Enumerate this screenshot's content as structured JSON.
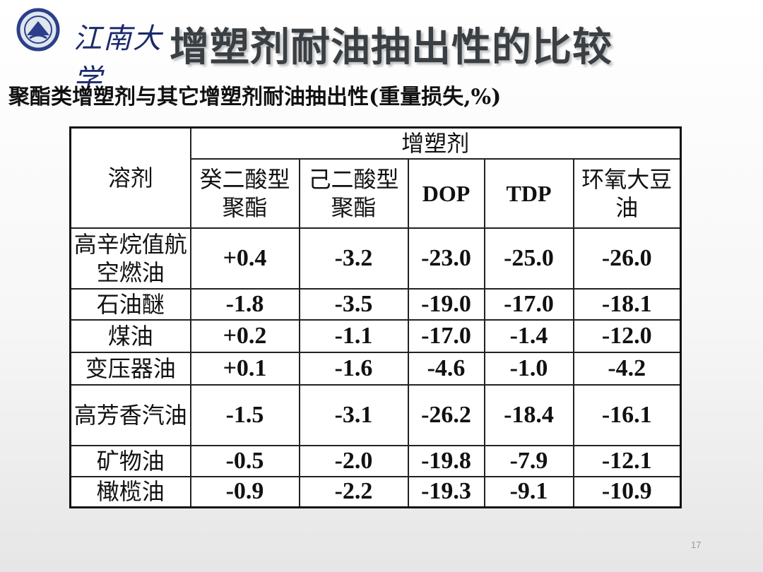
{
  "header": {
    "logo_text": "江南大学",
    "title": "增塑剂耐油抽出性的比较"
  },
  "subtitle": "聚酯类增塑剂与其它增塑剂耐油抽出性(重量损失,%)",
  "table": {
    "solvent_header": "溶剂",
    "group_header": "增塑剂",
    "columns": [
      "癸二酸型聚酯",
      "己二酸型聚酯",
      "DOP",
      "TDP",
      "环氧大豆油"
    ],
    "rows": [
      {
        "solvent": "高辛烷值航空燃油",
        "values": [
          "+0.4",
          "-3.2",
          "-23.0",
          "-25.0",
          "-26.0"
        ]
      },
      {
        "solvent": "石油醚",
        "values": [
          "-1.8",
          "-3.5",
          "-19.0",
          "-17.0",
          "-18.1"
        ]
      },
      {
        "solvent": "煤油",
        "values": [
          "+0.2",
          "-1.1",
          "-17.0",
          "-1.4",
          "-12.0"
        ]
      },
      {
        "solvent": "变压器油",
        "values": [
          "+0.1",
          "-1.6",
          "-4.6",
          "-1.0",
          "-4.2"
        ]
      },
      {
        "solvent": "高芳香汽油",
        "values": [
          "-1.5",
          "-3.1",
          "-26.2",
          "-18.4",
          "-16.1"
        ]
      },
      {
        "solvent": "矿物油",
        "values": [
          "-0.5",
          "-2.0",
          "-19.8",
          "-7.9",
          "-12.1"
        ]
      },
      {
        "solvent": "橄榄油",
        "values": [
          "-0.9",
          "-2.2",
          "-19.3",
          "-9.1",
          "-10.9"
        ]
      }
    ]
  },
  "page_number": "17"
}
